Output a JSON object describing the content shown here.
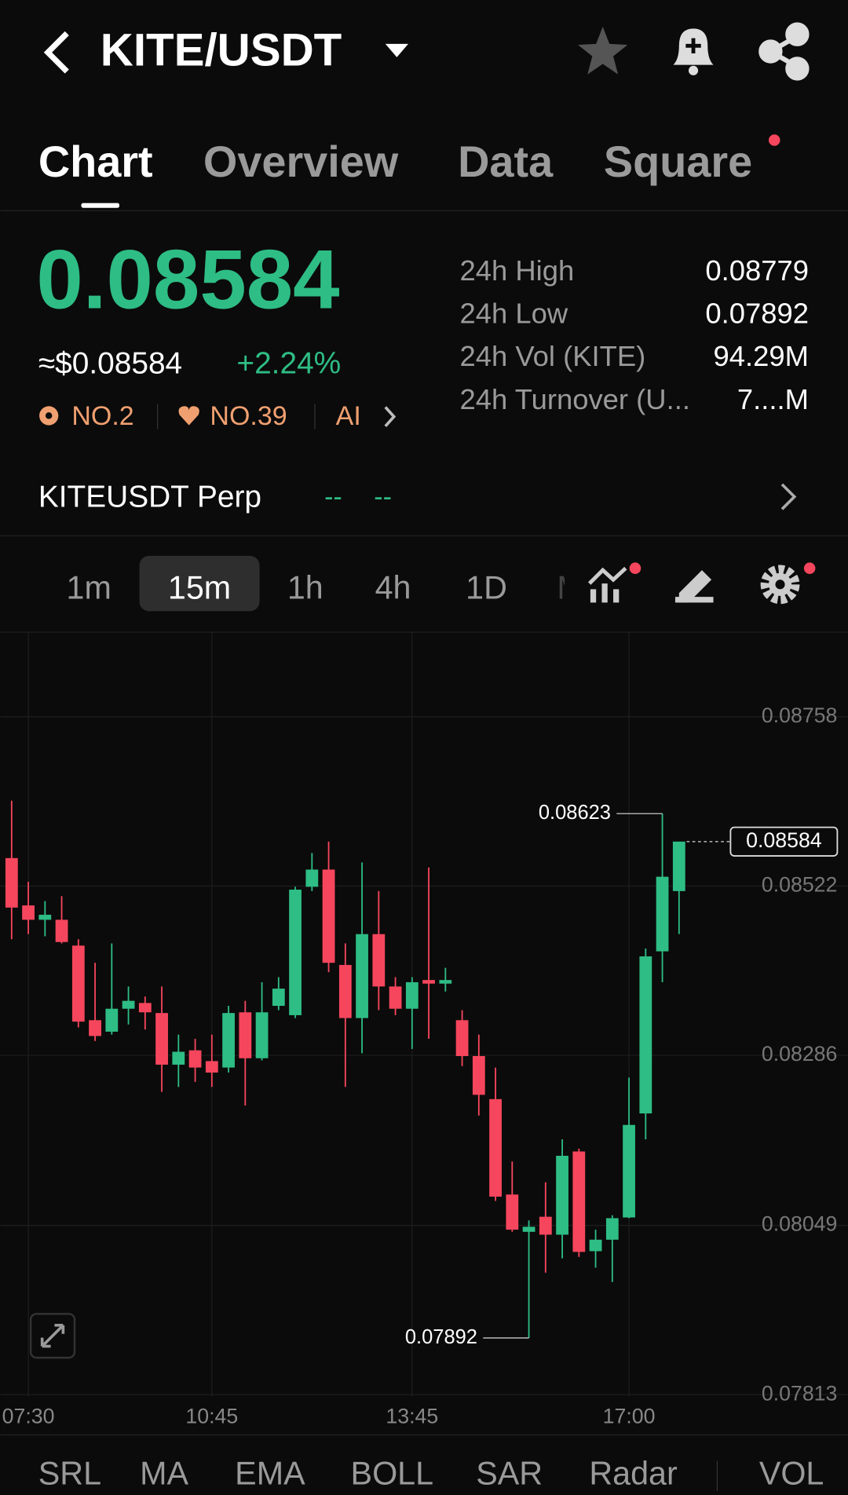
{
  "header": {
    "pair": "KITE/USDT"
  },
  "tabs": [
    "Chart",
    "Overview",
    "Data",
    "Square"
  ],
  "ticker": {
    "price": "0.08584",
    "usd": "≈$0.08584",
    "change": "+2.24%",
    "badges": [
      "NO.2",
      "NO.39",
      "AI"
    ],
    "stats": [
      {
        "label": "24h High",
        "value": "0.08779"
      },
      {
        "label": "24h Low",
        "value": "0.07892"
      },
      {
        "label": "24h Vol (KITE)",
        "value": "94.29M"
      },
      {
        "label": "24h Turnover (U...",
        "value": "7....M"
      }
    ]
  },
  "perp": {
    "name": "KITEUSDT Perp",
    "change": [
      "--",
      "--"
    ]
  },
  "intervals": [
    "1m",
    "15m",
    "1h",
    "4h",
    "1D",
    "M"
  ],
  "indicators": [
    "SRL",
    "MA",
    "EMA",
    "BOLL",
    "SAR",
    "Radar",
    "VOL"
  ],
  "chart_data": {
    "type": "candlestick",
    "categories": [
      null,
      "07:30",
      null,
      null,
      null,
      null,
      null,
      null,
      null,
      null,
      null,
      null,
      "10:45",
      null,
      null,
      null,
      null,
      null,
      null,
      null,
      null,
      null,
      null,
      null,
      "13:45",
      null,
      null,
      null,
      null,
      null,
      null,
      null,
      null,
      null,
      null,
      null,
      null,
      "17:00",
      null,
      null,
      null
    ],
    "open": [
      0.08561,
      0.08495,
      0.08475,
      0.08475,
      0.08439,
      0.08335,
      0.08319,
      0.08351,
      0.08359,
      0.08345,
      0.08273,
      0.08293,
      0.08278,
      0.08269,
      0.08346,
      0.08282,
      0.08355,
      0.08342,
      0.08521,
      0.08545,
      0.08412,
      0.08338,
      0.08455,
      0.08382,
      0.08351,
      0.08391,
      0.08386,
      0.08335,
      0.08285,
      0.08225,
      0.08092,
      0.0804,
      0.08061,
      0.08036,
      0.08152,
      0.08013,
      0.08029,
      0.0806,
      0.08205,
      0.08431,
      0.08515
    ],
    "high": [
      0.08641,
      0.08528,
      0.08501,
      0.08508,
      0.08448,
      0.08415,
      0.08442,
      0.08382,
      0.08368,
      0.08382,
      0.08315,
      0.08309,
      0.08315,
      0.08355,
      0.08362,
      0.08388,
      0.08395,
      0.08521,
      0.08568,
      0.08584,
      0.08442,
      0.08555,
      0.08515,
      0.08395,
      0.08395,
      0.08548,
      0.08408,
      0.08349,
      0.08315,
      0.08269,
      0.08138,
      0.08056,
      0.08109,
      0.08169,
      0.08156,
      0.08043,
      0.08063,
      0.08255,
      0.08435,
      0.08623,
      0.08584
    ],
    "low": [
      0.08448,
      0.08455,
      0.08452,
      0.08442,
      0.08325,
      0.08306,
      0.08315,
      0.08329,
      0.08322,
      0.08235,
      0.08242,
      0.08249,
      0.08242,
      0.08262,
      0.08216,
      0.08279,
      0.08349,
      0.08338,
      0.08515,
      0.08402,
      0.08242,
      0.08289,
      0.08349,
      0.08342,
      0.08295,
      0.08309,
      0.08375,
      0.08271,
      0.08202,
      0.08083,
      0.0804,
      0.07892,
      0.07983,
      0.08003,
      0.08005,
      0.0799,
      0.0797,
      0.08059,
      0.08169,
      0.08388,
      0.08455
    ],
    "close": [
      0.08492,
      0.08475,
      0.08482,
      0.08444,
      0.08333,
      0.08313,
      0.08351,
      0.08362,
      0.08346,
      0.08273,
      0.08291,
      0.08269,
      0.08262,
      0.08345,
      0.08282,
      0.08346,
      0.08379,
      0.08517,
      0.08545,
      0.08415,
      0.08338,
      0.08455,
      0.08382,
      0.08351,
      0.08388,
      0.08386,
      0.08391,
      0.08285,
      0.08231,
      0.08089,
      0.08043,
      0.08047,
      0.08036,
      0.08146,
      0.08012,
      0.08029,
      0.08059,
      0.08189,
      0.08424,
      0.08535,
      0.08584
    ],
    "up_color": "#2ebd85",
    "down_color": "#f6465d",
    "ylim": [
      0.0781,
      0.08876
    ],
    "yticks": [
      0.07813,
      0.08049,
      0.08286,
      0.08522,
      0.08758
    ],
    "grid": true,
    "max_marker": 0.08623,
    "min_marker": 0.07892,
    "last_price": 0.08584
  }
}
